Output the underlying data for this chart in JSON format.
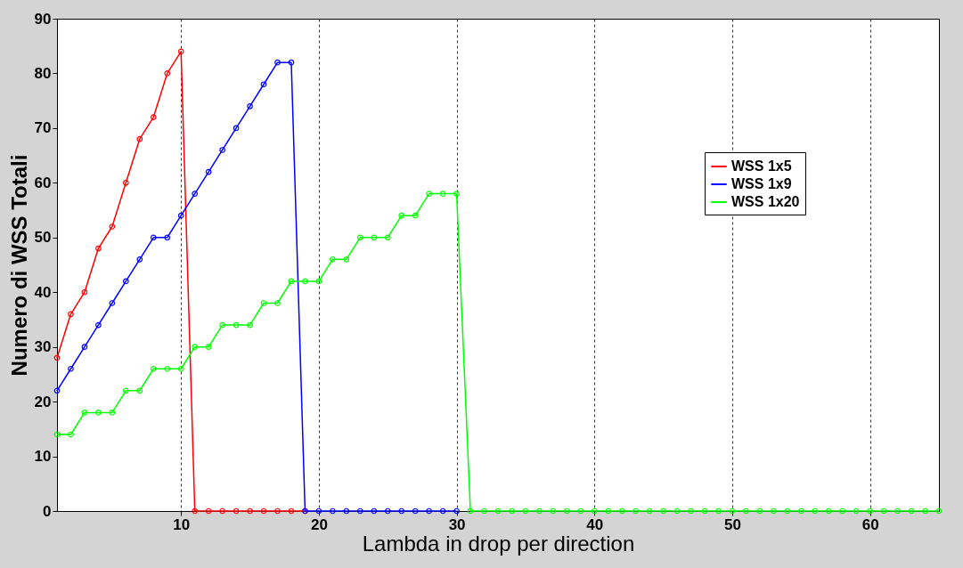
{
  "chart_data": {
    "type": "line",
    "xlabel": "Lambda in drop per direction",
    "ylabel": "Numero di WSS Totali",
    "x": [
      1,
      2,
      3,
      4,
      5,
      6,
      7,
      8,
      9,
      10,
      11,
      12,
      13,
      14,
      15,
      16,
      17,
      18,
      19,
      20,
      21,
      22,
      23,
      24,
      25,
      26,
      27,
      28,
      29,
      30,
      31,
      32,
      33,
      34,
      35,
      36,
      37,
      38,
      39,
      40,
      41,
      42,
      43,
      44,
      45,
      46,
      47,
      48,
      49,
      50,
      51,
      52,
      53,
      54,
      55,
      56,
      57,
      58,
      59,
      60,
      61,
      62,
      63,
      64,
      65
    ],
    "series": [
      {
        "name": "WSS 1x5",
        "color": "#ff0000",
        "values": [
          28,
          36,
          40,
          48,
          52,
          60,
          68,
          72,
          80,
          84,
          0,
          0,
          0,
          0,
          0,
          0,
          0,
          0,
          0,
          null,
          null,
          null,
          null,
          null,
          null,
          null,
          null,
          null,
          null,
          null,
          null,
          null,
          null,
          null,
          null,
          null,
          null,
          null,
          null,
          null,
          null,
          null,
          null,
          null,
          null,
          null,
          null,
          null,
          null,
          null,
          null,
          null,
          null,
          null,
          null,
          null,
          null,
          null,
          null,
          null,
          null,
          null,
          null,
          null,
          null
        ]
      },
      {
        "name": "WSS 1x9",
        "color": "#0000ff",
        "values": [
          22,
          26,
          30,
          34,
          38,
          42,
          46,
          50,
          50,
          54,
          58,
          62,
          66,
          70,
          74,
          78,
          82,
          82,
          0,
          0,
          0,
          0,
          0,
          0,
          0,
          0,
          0,
          0,
          0,
          0,
          null,
          null,
          null,
          null,
          null,
          null,
          null,
          null,
          null,
          null,
          null,
          null,
          null,
          null,
          null,
          null,
          null,
          null,
          null,
          null,
          null,
          null,
          null,
          null,
          null,
          null,
          null,
          null,
          null,
          null,
          null,
          null,
          null,
          null,
          null
        ]
      },
      {
        "name": "WSS 1x20",
        "color": "#00ff00",
        "values": [
          14,
          14,
          18,
          18,
          18,
          22,
          22,
          26,
          26,
          26,
          30,
          30,
          34,
          34,
          34,
          38,
          38,
          42,
          42,
          42,
          46,
          46,
          50,
          50,
          50,
          54,
          54,
          58,
          58,
          58,
          0,
          0,
          0,
          0,
          0,
          0,
          0,
          0,
          0,
          0,
          0,
          0,
          0,
          0,
          0,
          0,
          0,
          0,
          0,
          0,
          0,
          0,
          0,
          0,
          0,
          0,
          0,
          0,
          0,
          0,
          0,
          0,
          0,
          0,
          0
        ]
      }
    ],
    "xlim": [
      1,
      65
    ],
    "xticks": [
      10,
      20,
      30,
      40,
      50,
      60
    ],
    "ylim": [
      0,
      90
    ],
    "yticks": [
      0,
      10,
      20,
      30,
      40,
      50,
      60,
      70,
      80,
      90
    ],
    "grid": "x",
    "legend": "top right",
    "marker": "circle",
    "line_style": "solid"
  }
}
